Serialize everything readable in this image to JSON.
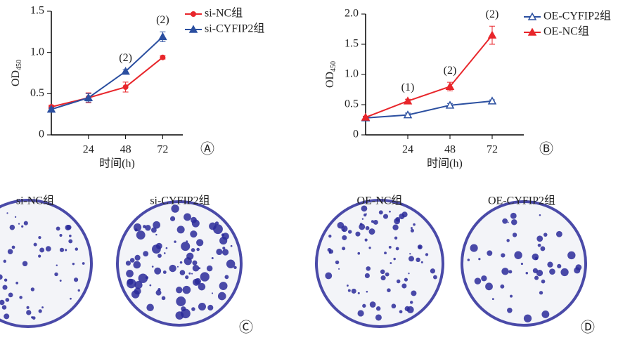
{
  "chart_data": [
    {
      "type": "line",
      "panel_label": "Ⓐ",
      "xlabel": "时间(h)",
      "ylabel": "OD",
      "ylabel_sub": "450",
      "x": [
        0,
        24,
        48,
        72
      ],
      "xlim": [
        0,
        85
      ],
      "xticks": [
        24,
        48,
        72
      ],
      "ylim": [
        0,
        1.5
      ],
      "yticks": [
        0,
        0.5,
        {
          "value": 1,
          "label": "1.0"
        },
        1.5
      ],
      "legend": "right",
      "series": [
        {
          "name": "si-NC组",
          "color": "#e8262b",
          "marker": "circle",
          "values": [
            0.34,
            0.45,
            0.58,
            0.94
          ],
          "errors": [
            0.02,
            0.06,
            0.06,
            0.02
          ]
        },
        {
          "name": "si-CYFIP2组",
          "color": "#2b4fa0",
          "marker": "triangle",
          "values": [
            0.31,
            0.45,
            0.77,
            1.19
          ],
          "errors": [
            0.02,
            0.05,
            0.02,
            0.06
          ]
        }
      ],
      "annotations": [
        {
          "text": "(2)",
          "x": 48
        },
        {
          "text": "(2)",
          "x": 72
        }
      ]
    },
    {
      "type": "line",
      "panel_label": "Ⓑ",
      "xlabel": "时间(h)",
      "ylabel": "OD",
      "ylabel_sub": "450",
      "x": [
        0,
        24,
        48,
        72
      ],
      "xlim": [
        0,
        90
      ],
      "xticks": [
        24,
        48,
        72
      ],
      "ylim": [
        0,
        2
      ],
      "yticks": [
        0,
        0.5,
        {
          "value": 1,
          "label": "1.0"
        },
        1.5,
        {
          "value": 2,
          "label": "2.0"
        }
      ],
      "legend": "right",
      "series": [
        {
          "name": "OE-CYFIP2组",
          "color": "#2b4fa0",
          "marker": "triangle-open",
          "values": [
            0.28,
            0.33,
            0.49,
            0.56
          ],
          "errors": [
            0.02,
            0.03,
            0.03,
            0.02
          ]
        },
        {
          "name": "OE-NC组",
          "color": "#e8262b",
          "marker": "triangle",
          "values": [
            0.29,
            0.56,
            0.8,
            1.65
          ],
          "errors": [
            0.02,
            0.03,
            0.07,
            0.15
          ]
        }
      ],
      "annotations": [
        {
          "text": "(1)",
          "x": 24
        },
        {
          "text": "(2)",
          "x": 48
        },
        {
          "text": "(2)",
          "x": 72
        }
      ]
    }
  ],
  "colony_images": {
    "labels": [
      "si-NC组",
      "si-CYFIP2组",
      "OE-NC组",
      "OE-CYFIP2组"
    ],
    "panel_labels": [
      "Ⓒ",
      "Ⓓ"
    ]
  }
}
